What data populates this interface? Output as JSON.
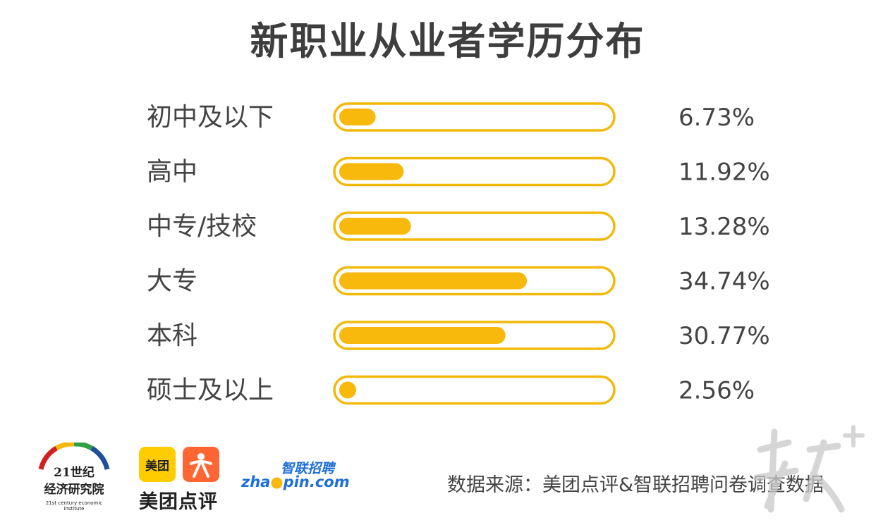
{
  "chart_data": {
    "type": "bar",
    "orientation": "horizontal",
    "title": "新职业从业者学历分布",
    "categories": [
      "初中及以下",
      "高中",
      "中专/技校",
      "大专",
      "本科",
      "硕士及以上"
    ],
    "values": [
      6.73,
      11.92,
      13.28,
      34.74,
      30.77,
      2.56
    ],
    "value_labels": [
      "6.73%",
      "11.92%",
      "13.28%",
      "34.74%",
      "30.77%",
      "2.56%"
    ],
    "xlim": [
      0,
      50
    ],
    "grid": false,
    "legend": "none",
    "colors": {
      "bar": "#f8b80c",
      "frame": "#f2b90a",
      "text": "#444444"
    }
  },
  "logos": {
    "institute": {
      "name": "21世纪",
      "subname": "经济研究院",
      "english": "21st century economic institute"
    },
    "meituan": {
      "badge": "美团",
      "name": "美团点评"
    },
    "zhaopin": {
      "cn": "智联招聘",
      "en_prefix": "zha",
      "en_suffix": "pin.com"
    }
  },
  "source": "数据来源：美团点评&智联招聘问卷调查数据"
}
